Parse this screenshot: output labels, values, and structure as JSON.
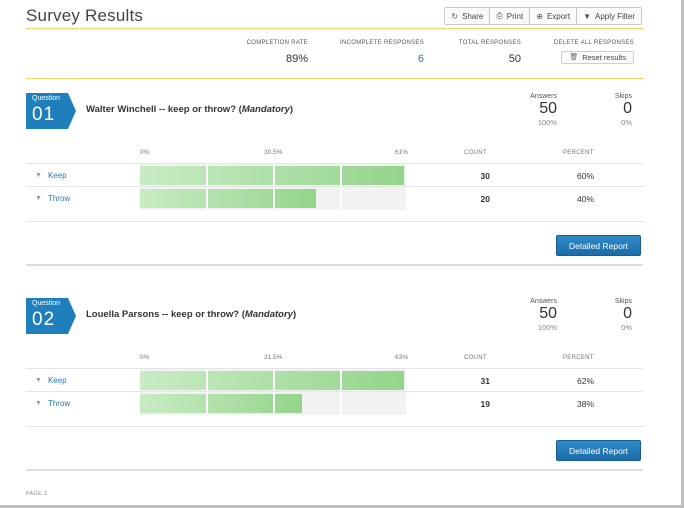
{
  "page": {
    "title": "Survey Results",
    "footer": "PAGE 3"
  },
  "toolbar": {
    "share": "Share",
    "print": "Print",
    "export": "Export",
    "apply_filter": "Apply Filter"
  },
  "summary": {
    "completion_rate_label": "COMPLETION RATE",
    "completion_rate": "89%",
    "incomplete_label": "INCOMPLETE RESPONSES",
    "incomplete": "6",
    "total_label": "TOTAL RESPONSES",
    "total": "50",
    "delete_label": "DELETE ALL RESPONSES",
    "reset_label": "Reset results"
  },
  "questions": [
    {
      "badge_label": "Question",
      "number": "01",
      "title": "Walter Winchell -- keep or throw?",
      "mandatory": "Mandatory",
      "answers_label": "Answers",
      "answers": "50",
      "answers_pct": "100%",
      "skips_label": "Skips",
      "skips": "0",
      "skips_pct": "0%",
      "axis": [
        "0%",
        "30.5%",
        "61%"
      ],
      "count_header": "COUNT",
      "percent_header": "PERCENT",
      "rows": [
        {
          "label": "Keep",
          "count": "30",
          "percent": "60%",
          "fraction": 0.6
        },
        {
          "label": "Throw",
          "count": "20",
          "percent": "40%",
          "fraction": 0.4
        }
      ],
      "axis_max": 0.61,
      "button": "Detailed Report"
    },
    {
      "badge_label": "Question",
      "number": "02",
      "title": "Louella Parsons -- keep or throw?",
      "mandatory": "Mandatory",
      "answers_label": "Answers",
      "answers": "50",
      "answers_pct": "100%",
      "skips_label": "Skips",
      "skips": "0",
      "skips_pct": "0%",
      "axis": [
        "0%",
        "31.5%",
        "63%"
      ],
      "count_header": "COUNT",
      "percent_header": "PERCENT",
      "rows": [
        {
          "label": "Keep",
          "count": "31",
          "percent": "62%",
          "fraction": 0.62
        },
        {
          "label": "Throw",
          "count": "19",
          "percent": "38%",
          "fraction": 0.38
        }
      ],
      "axis_max": 0.63,
      "button": "Detailed Report"
    }
  ],
  "icons": {
    "share": "share-icon",
    "print": "print-icon",
    "export": "export-icon",
    "filter": "filter-icon",
    "trash": "trash-icon",
    "row_filter": "filter-icon"
  },
  "colors": {
    "accent": "#1c6ca8",
    "link": "#2a78b5",
    "badge": "#1f7fbd",
    "bar": "#94d58b",
    "dotted": "#f0b44c"
  }
}
